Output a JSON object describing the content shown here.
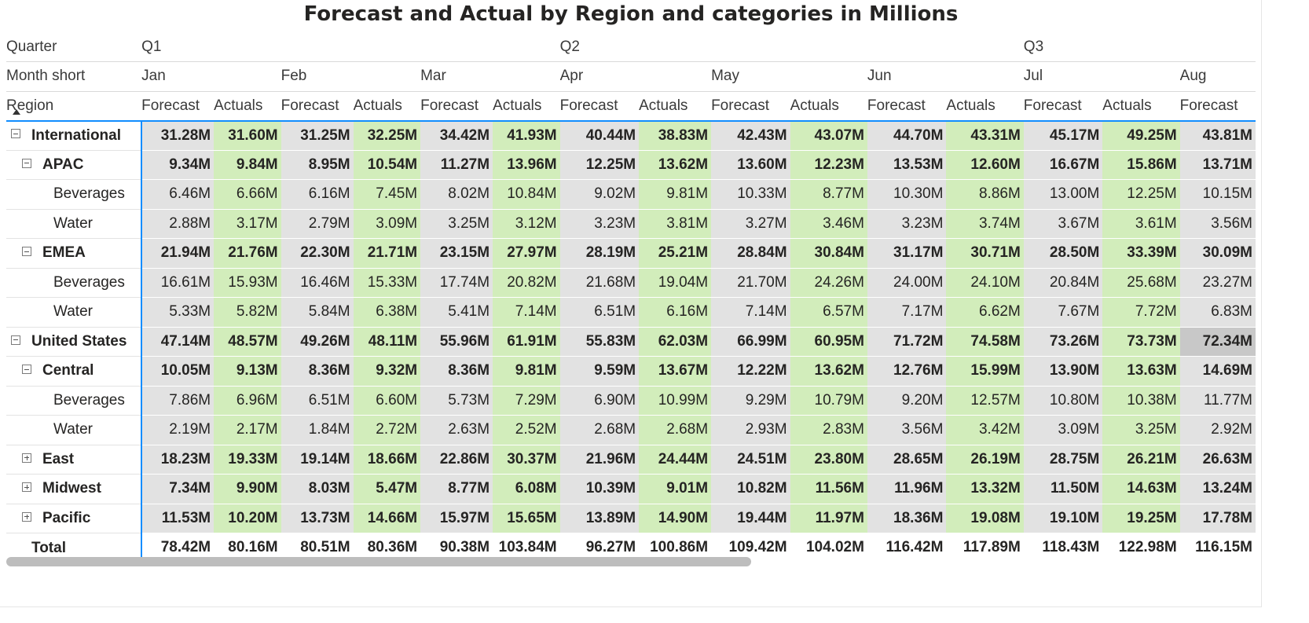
{
  "title": "Forecast and Actual by Region and categories in Millions",
  "headers": {
    "quarter_label": "Quarter",
    "month_label": "Month short",
    "region_label": "Region",
    "quarters": [
      {
        "label": "Q1",
        "span": 6
      },
      {
        "label": "Q2",
        "span": 6
      },
      {
        "label": "Q3",
        "span": 3
      }
    ],
    "months": [
      {
        "label": "Jan",
        "span": 2
      },
      {
        "label": "Feb",
        "span": 2
      },
      {
        "label": "Mar",
        "span": 2
      },
      {
        "label": "Apr",
        "span": 2
      },
      {
        "label": "May",
        "span": 2
      },
      {
        "label": "Jun",
        "span": 2
      },
      {
        "label": "Jul",
        "span": 2
      },
      {
        "label": "Aug",
        "span": 1
      }
    ],
    "measures": [
      "Forecast",
      "Actuals",
      "Forecast",
      "Actuals",
      "Forecast",
      "Actuals",
      "Forecast",
      "Actuals",
      "Forecast",
      "Actuals",
      "Forecast",
      "Actuals",
      "Forecast",
      "Actuals",
      "Forecast"
    ]
  },
  "rows": [
    {
      "label": "International",
      "level": 0,
      "toggle": "minus",
      "values": [
        "31.28M",
        "31.60M",
        "31.25M",
        "32.25M",
        "34.42M",
        "41.93M",
        "40.44M",
        "38.83M",
        "42.43M",
        "43.07M",
        "44.70M",
        "43.31M",
        "45.17M",
        "49.25M",
        "43.81M"
      ]
    },
    {
      "label": "APAC",
      "level": 1,
      "toggle": "minus",
      "values": [
        "9.34M",
        "9.84M",
        "8.95M",
        "10.54M",
        "11.27M",
        "13.96M",
        "12.25M",
        "13.62M",
        "13.60M",
        "12.23M",
        "13.53M",
        "12.60M",
        "16.67M",
        "15.86M",
        "13.71M"
      ]
    },
    {
      "label": "Beverages",
      "level": 2,
      "toggle": "",
      "values": [
        "6.46M",
        "6.66M",
        "6.16M",
        "7.45M",
        "8.02M",
        "10.84M",
        "9.02M",
        "9.81M",
        "10.33M",
        "8.77M",
        "10.30M",
        "8.86M",
        "13.00M",
        "12.25M",
        "10.15M"
      ]
    },
    {
      "label": "Water",
      "level": 2,
      "toggle": "",
      "values": [
        "2.88M",
        "3.17M",
        "2.79M",
        "3.09M",
        "3.25M",
        "3.12M",
        "3.23M",
        "3.81M",
        "3.27M",
        "3.46M",
        "3.23M",
        "3.74M",
        "3.67M",
        "3.61M",
        "3.56M"
      ]
    },
    {
      "label": "EMEA",
      "level": 1,
      "toggle": "minus",
      "values": [
        "21.94M",
        "21.76M",
        "22.30M",
        "21.71M",
        "23.15M",
        "27.97M",
        "28.19M",
        "25.21M",
        "28.84M",
        "30.84M",
        "31.17M",
        "30.71M",
        "28.50M",
        "33.39M",
        "30.09M"
      ]
    },
    {
      "label": "Beverages",
      "level": 2,
      "toggle": "",
      "values": [
        "16.61M",
        "15.93M",
        "16.46M",
        "15.33M",
        "17.74M",
        "20.82M",
        "21.68M",
        "19.04M",
        "21.70M",
        "24.26M",
        "24.00M",
        "24.10M",
        "20.84M",
        "25.68M",
        "23.27M"
      ]
    },
    {
      "label": "Water",
      "level": 2,
      "toggle": "",
      "values": [
        "5.33M",
        "5.82M",
        "5.84M",
        "6.38M",
        "5.41M",
        "7.14M",
        "6.51M",
        "6.16M",
        "7.14M",
        "6.57M",
        "7.17M",
        "6.62M",
        "7.67M",
        "7.72M",
        "6.83M"
      ]
    },
    {
      "label": "United States",
      "level": 0,
      "toggle": "minus",
      "highlight": 14,
      "values": [
        "47.14M",
        "48.57M",
        "49.26M",
        "48.11M",
        "55.96M",
        "61.91M",
        "55.83M",
        "62.03M",
        "66.99M",
        "60.95M",
        "71.72M",
        "74.58M",
        "73.26M",
        "73.73M",
        "72.34M"
      ]
    },
    {
      "label": "Central",
      "level": 1,
      "toggle": "minus",
      "values": [
        "10.05M",
        "9.13M",
        "8.36M",
        "9.32M",
        "8.36M",
        "9.81M",
        "9.59M",
        "13.67M",
        "12.22M",
        "13.62M",
        "12.76M",
        "15.99M",
        "13.90M",
        "13.63M",
        "14.69M"
      ]
    },
    {
      "label": "Beverages",
      "level": 2,
      "toggle": "",
      "values": [
        "7.86M",
        "6.96M",
        "6.51M",
        "6.60M",
        "5.73M",
        "7.29M",
        "6.90M",
        "10.99M",
        "9.29M",
        "10.79M",
        "9.20M",
        "12.57M",
        "10.80M",
        "10.38M",
        "11.77M"
      ]
    },
    {
      "label": "Water",
      "level": 2,
      "toggle": "",
      "values": [
        "2.19M",
        "2.17M",
        "1.84M",
        "2.72M",
        "2.63M",
        "2.52M",
        "2.68M",
        "2.68M",
        "2.93M",
        "2.83M",
        "3.56M",
        "3.42M",
        "3.09M",
        "3.25M",
        "2.92M"
      ]
    },
    {
      "label": "East",
      "level": 1,
      "toggle": "plus",
      "values": [
        "18.23M",
        "19.33M",
        "19.14M",
        "18.66M",
        "22.86M",
        "30.37M",
        "21.96M",
        "24.44M",
        "24.51M",
        "23.80M",
        "28.65M",
        "26.19M",
        "28.75M",
        "26.21M",
        "26.63M"
      ]
    },
    {
      "label": "Midwest",
      "level": 1,
      "toggle": "plus",
      "values": [
        "7.34M",
        "9.90M",
        "8.03M",
        "5.47M",
        "8.77M",
        "6.08M",
        "10.39M",
        "9.01M",
        "10.82M",
        "11.56M",
        "11.96M",
        "13.32M",
        "11.50M",
        "14.63M",
        "13.24M"
      ]
    },
    {
      "label": "Pacific",
      "level": 1,
      "toggle": "plus",
      "values": [
        "11.53M",
        "10.20M",
        "13.73M",
        "14.66M",
        "15.97M",
        "15.65M",
        "13.89M",
        "14.90M",
        "19.44M",
        "11.97M",
        "18.36M",
        "19.08M",
        "19.10M",
        "19.25M",
        "17.78M"
      ]
    }
  ],
  "total": {
    "label": "Total",
    "values": [
      "78.42M",
      "80.16M",
      "80.51M",
      "80.36M",
      "90.38M",
      "103.84M",
      "96.27M",
      "100.86M",
      "109.42M",
      "104.02M",
      "116.42M",
      "117.89M",
      "118.43M",
      "122.98M",
      "116.15M"
    ]
  },
  "colors": {
    "forecast_bg": "#e2e2e2",
    "actuals_bg": "#d2edbb",
    "accent": "#118dff",
    "highlight_bg": "#c8c8c8"
  }
}
